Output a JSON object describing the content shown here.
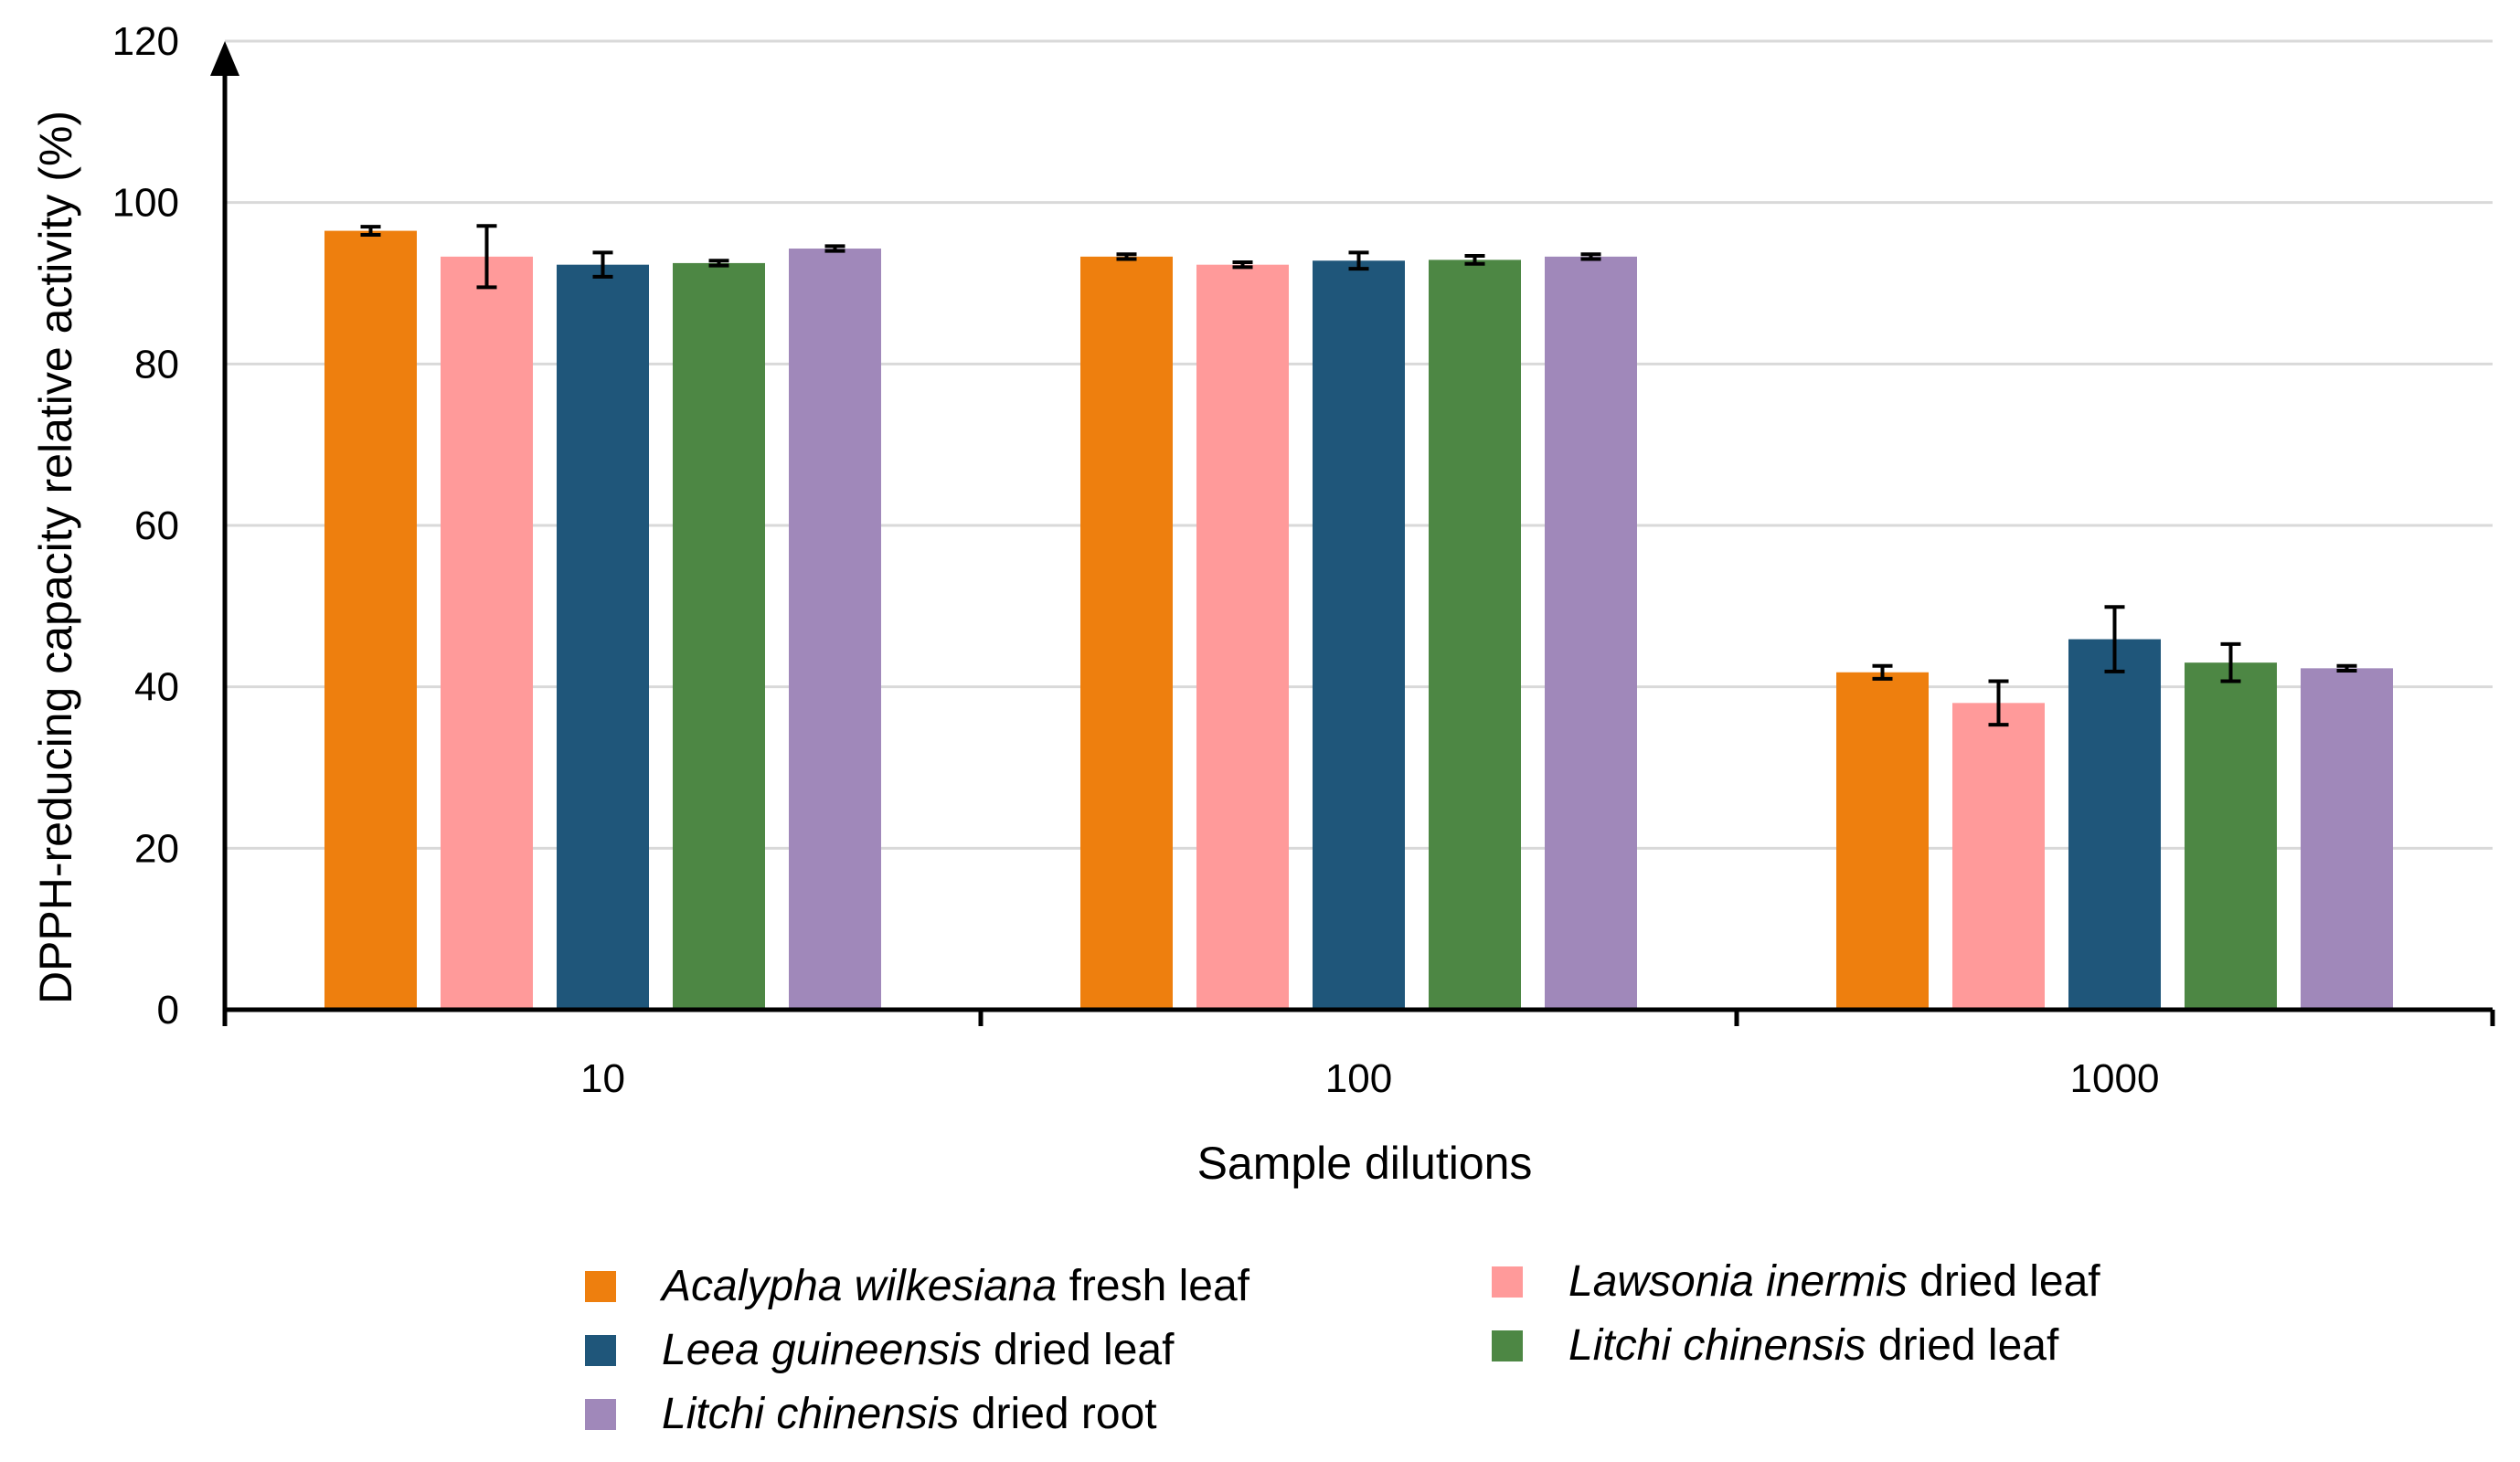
{
  "chart_data": {
    "type": "bar",
    "title": "",
    "xlabel": "Sample dilutions",
    "ylabel": "DPPH-reducing capacity relative activity (%)",
    "ylim": [
      0,
      120
    ],
    "yticks": [
      0,
      20,
      40,
      60,
      80,
      100,
      120
    ],
    "grid": true,
    "legend_position": "bottom",
    "categories": [
      "10",
      "100",
      "1000"
    ],
    "series": [
      {
        "name": "Acalypha wilkesiana fresh leaf",
        "species": "Acalypha wilkesiana",
        "part": "fresh leaf",
        "color": "#EE7F0E",
        "values": [
          96.5,
          93.3,
          41.8
        ],
        "errors": [
          0.5,
          0.3,
          0.8
        ]
      },
      {
        "name": "Lawsonia inermis dried leaf",
        "species": "Lawsonia inermis",
        "part": "dried leaf",
        "color": "#FF9A9A",
        "values": [
          93.3,
          92.3,
          38.0
        ],
        "errors": [
          3.8,
          0.3,
          2.7
        ]
      },
      {
        "name": "Leea guineensis dried leaf",
        "species": "Leea guineensis",
        "part": "dried leaf",
        "color": "#1F567A",
        "values": [
          92.3,
          92.8,
          45.9
        ],
        "errors": [
          1.5,
          1.0,
          4.0
        ]
      },
      {
        "name": "Litchi chinensis dried leaf",
        "species": "Litchi chinensis",
        "part": "dried leaf",
        "color": "#4D8744",
        "values": [
          92.5,
          92.9,
          43.0
        ],
        "errors": [
          0.3,
          0.5,
          2.3
        ]
      },
      {
        "name": "Litchi chinensis dried root",
        "species": "Litchi chinensis",
        "part": "dried root",
        "color": "#A088BA",
        "values": [
          94.3,
          93.3,
          42.3
        ],
        "errors": [
          0.3,
          0.3,
          0.3
        ]
      }
    ]
  }
}
